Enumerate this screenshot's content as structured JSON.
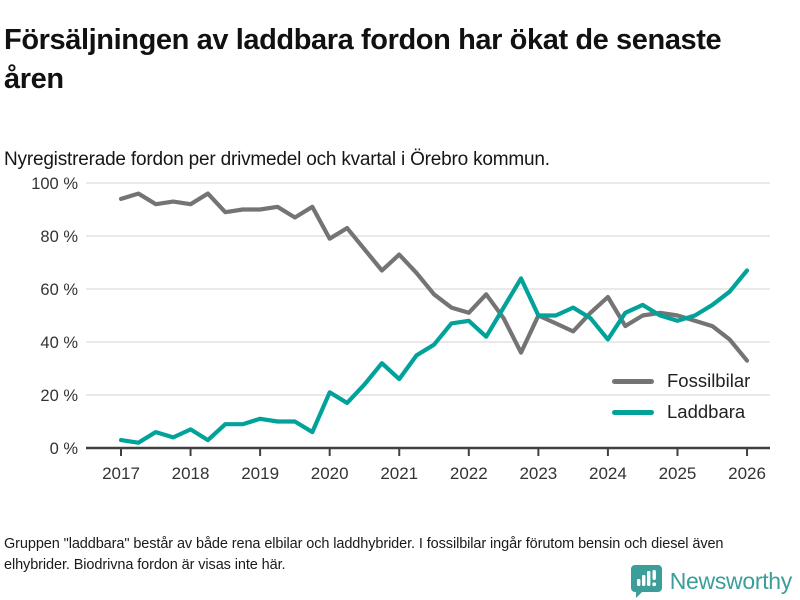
{
  "header": {
    "title": "Försäljningen av laddbara fordon har ökat de senaste åren",
    "subtitle": "Nyregistrerade fordon per drivmedel och kvartal i Örebro kommun."
  },
  "chart_data": {
    "type": "line",
    "x_unit": "quarter",
    "x_start_year": 2017,
    "x_end_year": 2026,
    "ylim": [
      0,
      100
    ],
    "grid": "horizontal",
    "legend_position": "top-right",
    "y_ticks": [
      {
        "label": "0 %",
        "value": 0
      },
      {
        "label": "20 %",
        "value": 20
      },
      {
        "label": "40 %",
        "value": 40
      },
      {
        "label": "60 %",
        "value": 60
      },
      {
        "label": "80 %",
        "value": 80
      },
      {
        "label": "100 %",
        "value": 100
      }
    ],
    "x_ticks": [
      {
        "label": "2017",
        "value": 2017
      },
      {
        "label": "2018",
        "value": 2018
      },
      {
        "label": "2019",
        "value": 2019
      },
      {
        "label": "2020",
        "value": 2020
      },
      {
        "label": "2021",
        "value": 2021
      },
      {
        "label": "2022",
        "value": 2022
      },
      {
        "label": "2023",
        "value": 2023
      },
      {
        "label": "2024",
        "value": 2024
      },
      {
        "label": "2025",
        "value": 2025
      },
      {
        "label": "2026",
        "value": 2026
      }
    ],
    "series": [
      {
        "name": "Fossilbilar",
        "color": "#747474",
        "values": [
          94,
          96,
          92,
          93,
          92,
          96,
          89,
          90,
          90,
          91,
          87,
          91,
          79,
          83,
          75,
          67,
          73,
          66,
          58,
          53,
          51,
          58,
          49,
          36,
          50,
          47,
          44,
          51,
          57,
          46,
          50,
          51,
          50,
          48,
          46,
          41,
          33
        ]
      },
      {
        "name": "Laddbara",
        "color": "#00a29a",
        "values": [
          3,
          2,
          6,
          4,
          7,
          3,
          9,
          9,
          11,
          10,
          10,
          6,
          21,
          17,
          24,
          32,
          26,
          35,
          39,
          47,
          48,
          42,
          53,
          64,
          50,
          50,
          53,
          49,
          41,
          51,
          54,
          50,
          48,
          50,
          54,
          59,
          67
        ]
      }
    ]
  },
  "footer": {
    "note": "Gruppen \"laddbara\" består av både rena elbilar och laddhybrider. I fossilbilar ingår förutom bensin och diesel även elhybrider. Biodrivna fordon är visas inte här."
  },
  "branding": {
    "name": "Newsworthy",
    "color": "#3b9e99",
    "icon": "newsworthy-chart-bubble-icon"
  }
}
